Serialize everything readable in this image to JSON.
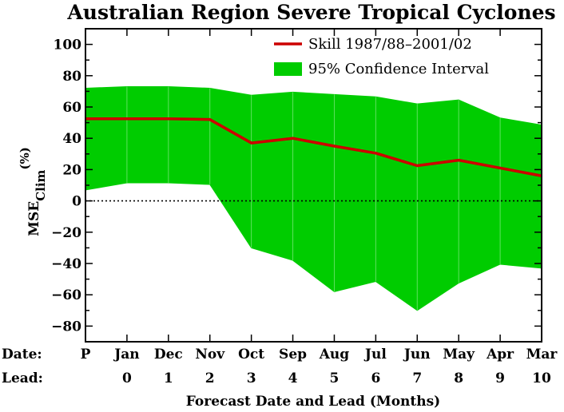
{
  "chart_data": {
    "type": "line",
    "title": "Australian Region Severe Tropical Cyclones",
    "xlabel": "Forecast Date and Lead (Months)",
    "ylabel_main": "MSE",
    "ylabel_sub": "Clim",
    "ylabel_unit": "(%)",
    "row_labels": {
      "date": "Date:",
      "lead": "Lead:"
    },
    "categories": [
      "P",
      "Jan",
      "Dec",
      "Nov",
      "Oct",
      "Sep",
      "Aug",
      "Jul",
      "Jun",
      "May",
      "Apr",
      "Mar"
    ],
    "leads": [
      "",
      "0",
      "1",
      "2",
      "3",
      "4",
      "5",
      "6",
      "7",
      "8",
      "9",
      "10"
    ],
    "ylim": [
      -90,
      110
    ],
    "yticks": [
      100,
      80,
      60,
      40,
      20,
      0,
      -20,
      -40,
      -60,
      -80
    ],
    "reference_line": 0,
    "series": [
      {
        "name": "Skill 1987/88–2001/02",
        "kind": "line",
        "color": "#cc0000",
        "values": [
          52.5,
          52.5,
          52.5,
          52,
          37,
          40,
          35,
          30.5,
          22.5,
          26,
          21,
          16
        ]
      },
      {
        "name": "95% Confidence Interval",
        "kind": "band",
        "color": "#00cc00",
        "upper": [
          72,
          73,
          73,
          72,
          67.5,
          69.5,
          68,
          66.5,
          62,
          64.5,
          53,
          48.5
        ],
        "lower": [
          7,
          11.5,
          11.5,
          10.5,
          -30,
          -38,
          -58,
          -51.5,
          -70,
          -52.5,
          -40.5,
          -43
        ]
      }
    ],
    "grid": false,
    "legend_position": "top-right"
  }
}
